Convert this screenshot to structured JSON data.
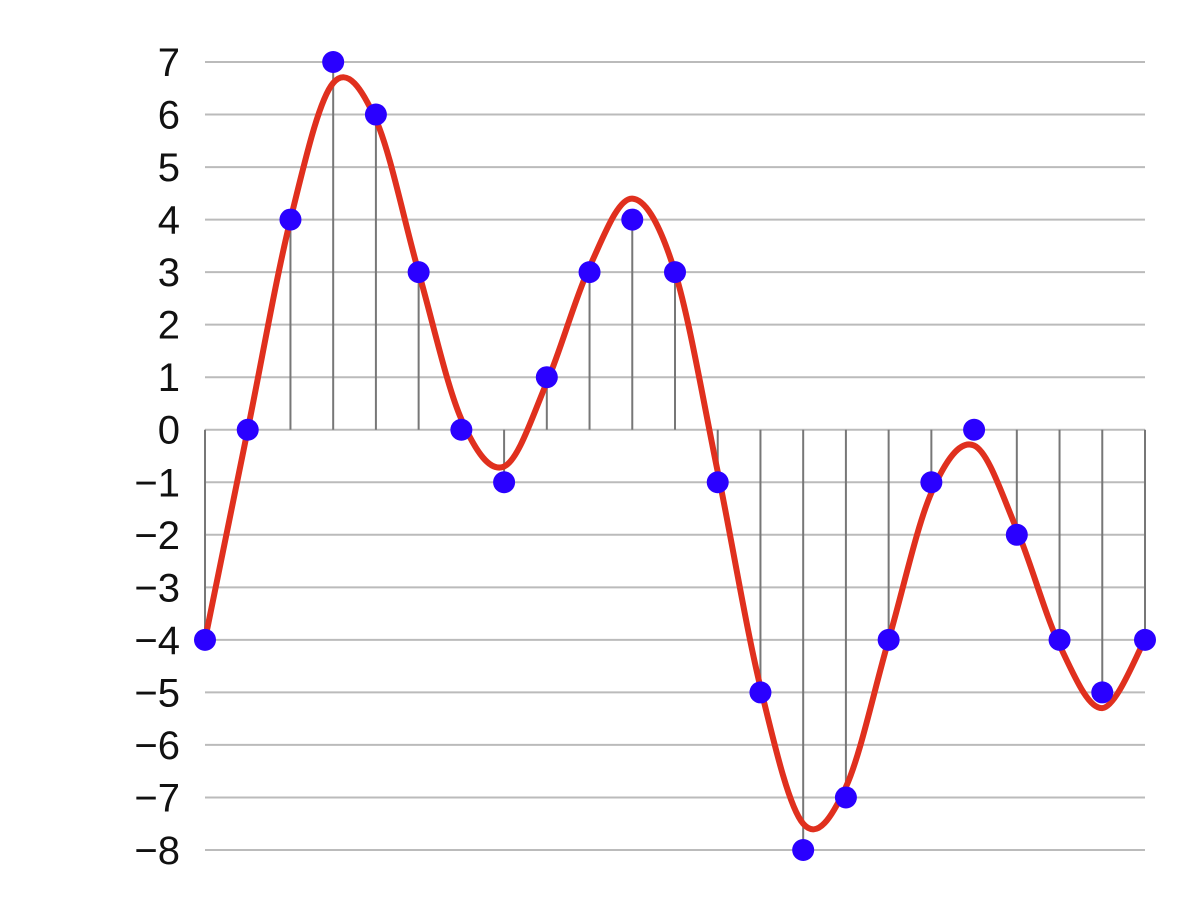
{
  "chart_data": {
    "type": "line",
    "title": "",
    "xlabel": "",
    "ylabel": "",
    "ylim": [
      -8,
      7
    ],
    "y_ticks": [
      "7",
      "6",
      "5",
      "4",
      "3",
      "2",
      "1",
      "0",
      "−1",
      "−2",
      "−3",
      "−4",
      "−5",
      "−6",
      "−7",
      "−8"
    ],
    "y_tick_values": [
      7,
      6,
      5,
      4,
      3,
      2,
      1,
      0,
      -1,
      -2,
      -3,
      -4,
      -5,
      -6,
      -7,
      -8
    ],
    "grid": true,
    "sample_index": [
      0,
      1,
      2,
      3,
      4,
      5,
      6,
      7,
      8,
      9,
      10,
      11,
      12,
      13,
      14,
      15,
      16,
      17,
      18,
      19,
      20,
      21,
      22
    ],
    "series": [
      {
        "kind": "quantized-samples",
        "values": [
          -4,
          0,
          4,
          7,
          6,
          3,
          0,
          -1,
          1,
          3,
          4,
          3,
          -1,
          -5,
          -8,
          -7,
          -4,
          -1,
          0,
          -2,
          -4,
          -5,
          -4
        ]
      },
      {
        "kind": "continuous-signal",
        "values": [
          -4,
          0,
          4,
          6.6,
          5.9,
          3.0,
          0.2,
          -0.7,
          0.9,
          3.1,
          4.4,
          3.0,
          -0.8,
          -4.9,
          -7.5,
          -6.8,
          -4.0,
          -1.2,
          -0.3,
          -1.9,
          -4.1,
          -5.3,
          -4.0
        ]
      }
    ],
    "colors": {
      "signal": "#e0301e",
      "samples": "#2a00ff",
      "stems": "#777777",
      "grid": "#bbbbbb"
    }
  }
}
